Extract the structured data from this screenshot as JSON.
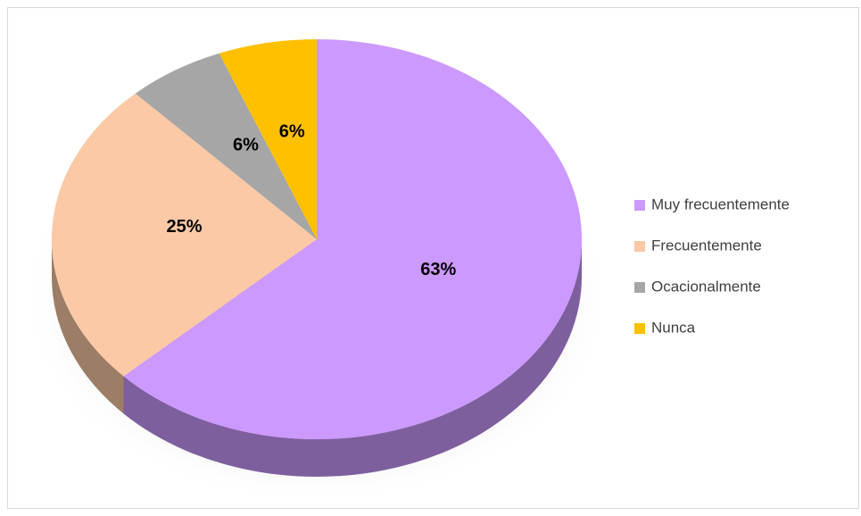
{
  "chart_data": {
    "type": "pie",
    "categories": [
      "Muy frecuentemente",
      "Frecuentemente",
      "Ocacionalmente",
      "Nunca"
    ],
    "values": [
      63,
      25,
      6,
      6
    ],
    "value_labels": [
      "63%",
      "25%",
      "6%",
      "6%"
    ],
    "colors": [
      "#cc99ff",
      "#fbc9a5",
      "#a6a6a6",
      "#ffc000"
    ],
    "legend": "right"
  }
}
